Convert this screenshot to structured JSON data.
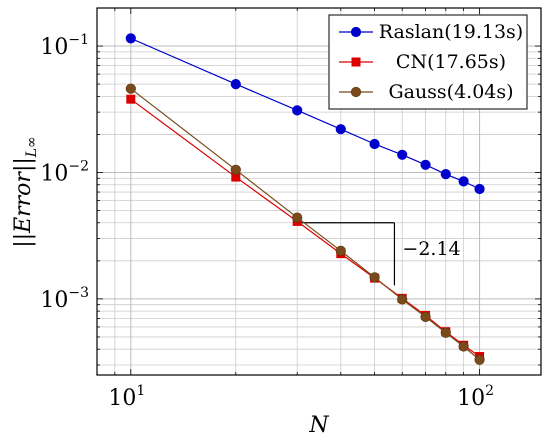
{
  "chart_data": {
    "type": "line",
    "xscale": "log",
    "yscale": "log",
    "xlim": [
      8,
      150
    ],
    "ylim": [
      0.00025,
      0.2
    ],
    "xlabel": "N",
    "ylabel": "||Error||L∞",
    "xticks": [
      {
        "value": 10,
        "base": "10",
        "exp": "1"
      },
      {
        "value": 100,
        "base": "10",
        "exp": "2"
      }
    ],
    "yticks": [
      {
        "value": 0.1,
        "base": "10",
        "exp": "−1"
      },
      {
        "value": 0.01,
        "base": "10",
        "exp": "−2"
      },
      {
        "value": 0.001,
        "base": "10",
        "exp": "−3"
      }
    ],
    "grid": "major and minor",
    "legend_position": "top-right",
    "series": [
      {
        "name": "Raslan(19.13s)",
        "color": "#0000cc",
        "marker": "circle",
        "x": [
          10,
          20,
          30,
          40,
          50,
          60,
          70,
          80,
          90,
          100
        ],
        "y": [
          0.115,
          0.05,
          0.031,
          0.022,
          0.0168,
          0.0138,
          0.0115,
          0.0097,
          0.0085,
          0.0074
        ]
      },
      {
        "name": "CN(17.65s)",
        "color": "#dd0000",
        "marker": "square",
        "x": [
          10,
          20,
          30,
          40,
          50,
          60,
          70,
          80,
          90,
          100
        ],
        "y": [
          0.038,
          0.0092,
          0.0041,
          0.00228,
          0.00146,
          0.00101,
          0.00074,
          0.00055,
          0.00043,
          0.00035
        ]
      },
      {
        "name": "Gauss(4.04s)",
        "color": "#7a4a1a",
        "marker": "circle",
        "x": [
          10,
          20,
          30,
          40,
          50,
          60,
          70,
          80,
          90,
          100
        ],
        "y": [
          0.046,
          0.0105,
          0.0044,
          0.0024,
          0.00148,
          0.00099,
          0.00072,
          0.00054,
          0.00042,
          0.00033
        ]
      }
    ],
    "annotation": {
      "text": "−2.14",
      "triangle": {
        "x1": 30,
        "x2": 57,
        "y_top": 0.004
      }
    }
  }
}
